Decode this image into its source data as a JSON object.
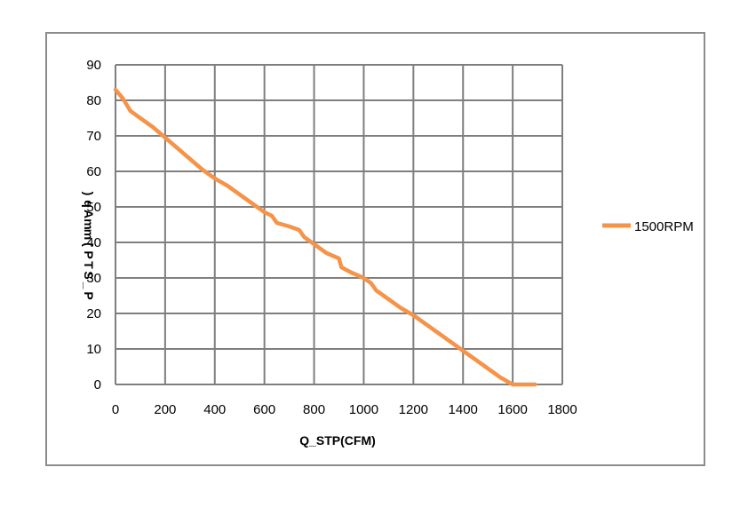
{
  "chart_data": {
    "type": "line",
    "title": "",
    "xlabel": "Q_STP(CFM)",
    "ylabel": "P_STP(mmAq)",
    "xlim": [
      0,
      1800
    ],
    "ylim": [
      0,
      90
    ],
    "xticks": [
      0,
      200,
      400,
      600,
      800,
      1000,
      1200,
      1400,
      1600,
      1800
    ],
    "yticks": [
      0,
      10,
      20,
      30,
      40,
      50,
      60,
      70,
      80,
      90
    ],
    "grid": true,
    "legend_position": "right",
    "series": [
      {
        "name": "1500RPM",
        "color": "#f4944a",
        "x": [
          0,
          30,
          60,
          100,
          150,
          200,
          250,
          300,
          350,
          400,
          450,
          500,
          550,
          600,
          630,
          650,
          700,
          740,
          760,
          800,
          850,
          900,
          910,
          950,
          1000,
          1030,
          1050,
          1100,
          1150,
          1200,
          1250,
          1300,
          1350,
          1400,
          1450,
          1500,
          1550,
          1600,
          1640,
          1660,
          1690
        ],
        "y": [
          83,
          80.5,
          77,
          75,
          72.5,
          69.5,
          66.5,
          63.5,
          60.5,
          58,
          56,
          53.5,
          51,
          48.5,
          47.5,
          45.5,
          44.5,
          43.5,
          41.5,
          39.5,
          37,
          35.5,
          33,
          31.5,
          30,
          28.5,
          26.5,
          24,
          21.5,
          19.5,
          17,
          14.5,
          12,
          9.5,
          7,
          4.5,
          2,
          0,
          0,
          0,
          0
        ]
      }
    ]
  }
}
